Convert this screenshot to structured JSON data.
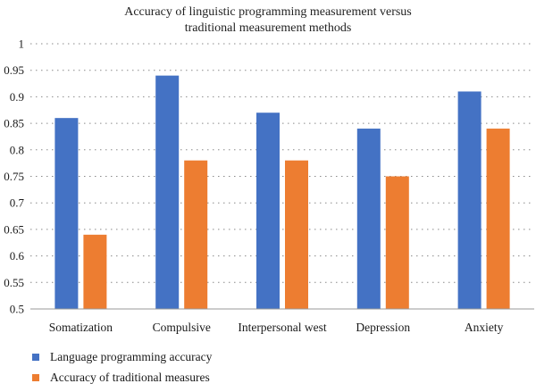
{
  "chart_data": {
    "type": "bar",
    "title_lines": [
      "Accuracy of linguistic programming measurement versus",
      "traditional measurement methods"
    ],
    "xlabel": "",
    "ylabel": "",
    "categories": [
      "Somatization",
      "Compulsive",
      "Interpersonal west",
      "Depression",
      "Anxiety"
    ],
    "series": [
      {
        "name": "Language programming accuracy",
        "color": "#4472C4",
        "values": [
          0.86,
          0.94,
          0.87,
          0.84,
          0.91
        ]
      },
      {
        "name": "Accuracy of traditional measures",
        "color": "#ED7D31",
        "values": [
          0.64,
          0.78,
          0.78,
          0.75,
          0.84
        ]
      }
    ],
    "ylim": [
      0.5,
      1
    ],
    "yticks": [
      "0.5",
      "0.55",
      "0.6",
      "0.65",
      "0.7",
      "0.75",
      "0.8",
      "0.85",
      "0.9",
      "0.95",
      "1"
    ],
    "grid": true,
    "legend_position": "bottom-left"
  }
}
